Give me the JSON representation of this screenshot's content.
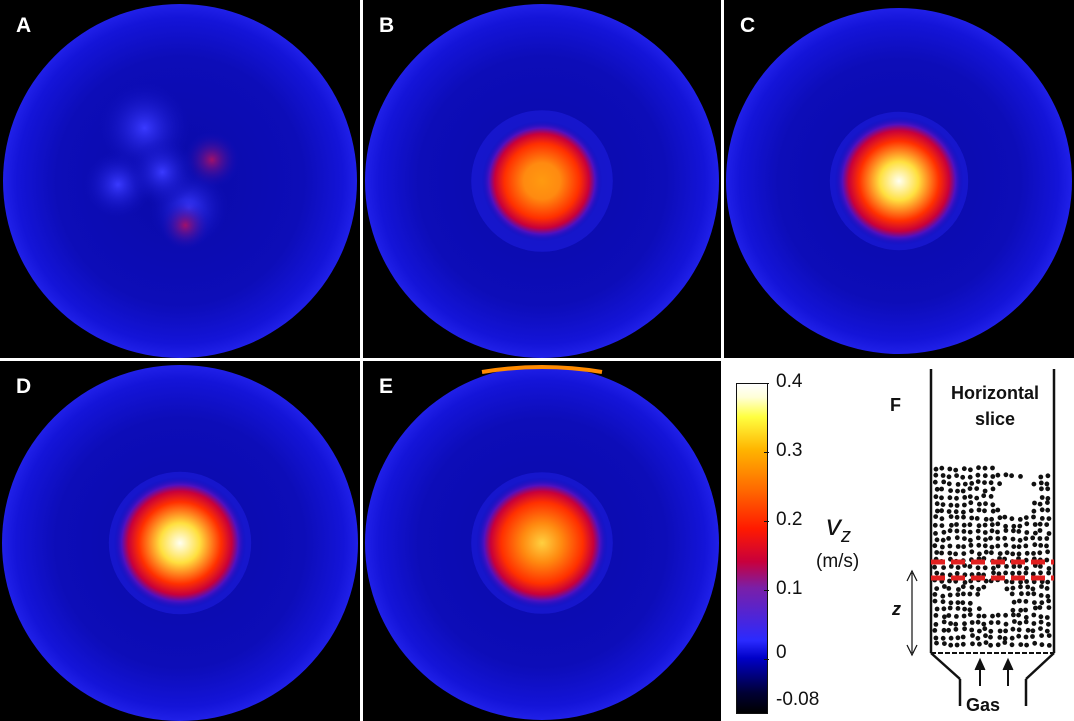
{
  "panels": [
    {
      "id": "A",
      "label": "A",
      "peak": 0.12,
      "blob_radius_frac": 0.0,
      "pattern": "scattered-spots"
    },
    {
      "id": "B",
      "label": "B",
      "peak": 0.24,
      "blob_radius_frac": 0.22,
      "pattern": "central-blob"
    },
    {
      "id": "C",
      "label": "C",
      "peak": 0.4,
      "blob_radius_frac": 0.24,
      "pattern": "central-blob"
    },
    {
      "id": "D",
      "label": "D",
      "peak": 0.36,
      "blob_radius_frac": 0.24,
      "pattern": "central-blob"
    },
    {
      "id": "E",
      "label": "E",
      "peak": 0.3,
      "blob_radius_frac": 0.24,
      "pattern": "central-blob"
    }
  ],
  "colorbar": {
    "ticks": [
      "0.4",
      "0.3",
      "0.2",
      "0.1",
      "0",
      "-0.08"
    ],
    "min": -0.08,
    "max": 0.4,
    "symbol": "v",
    "symbol_sub": "z",
    "unit": "(m/s)",
    "colormap": "hot-blue"
  },
  "schematic": {
    "label": "F",
    "slice_title_line1": "Horizontal",
    "slice_title_line2": "slice",
    "axis_label": "z",
    "inlet_label": "Gas",
    "slice_color": "#e02020"
  }
}
